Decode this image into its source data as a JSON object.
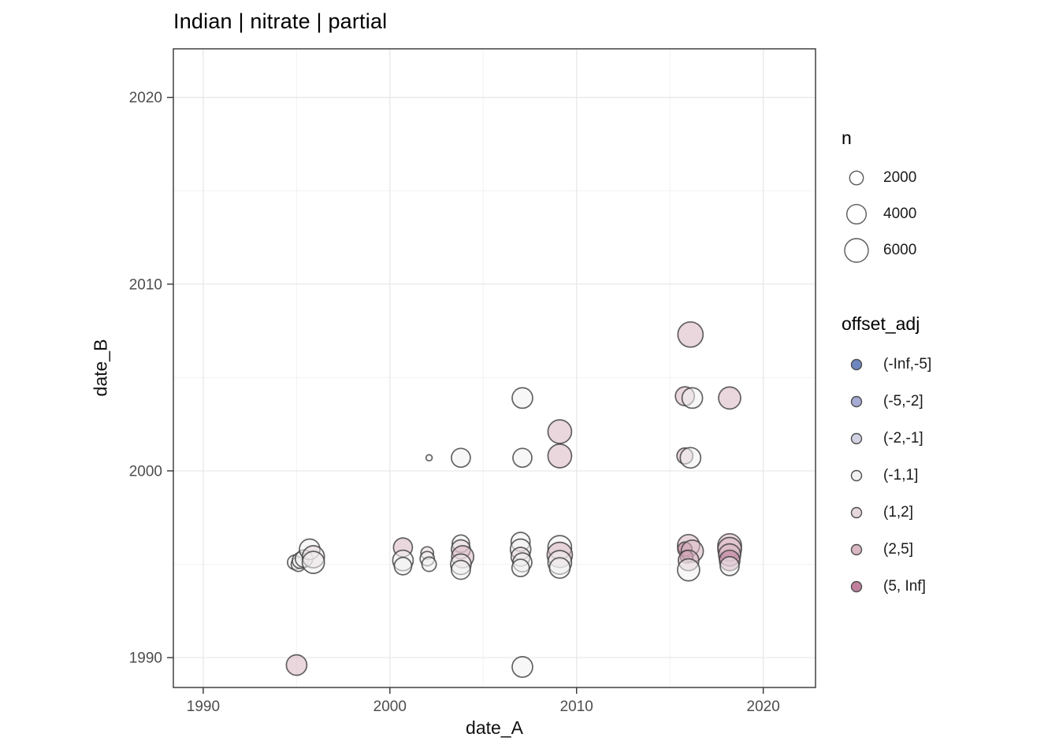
{
  "title": "Indian | nitrate | partial",
  "axes": {
    "x": {
      "label": "date_A",
      "ticks": [
        "1990",
        "2000",
        "2010",
        "2020"
      ],
      "tick_values": [
        1990,
        2000,
        2010,
        2020
      ],
      "minor_ticks": [
        1995,
        2005,
        2015
      ],
      "range": [
        1988.4,
        2022.8
      ]
    },
    "y": {
      "label": "date_B",
      "ticks": [
        "1990",
        "2000",
        "2010",
        "2020"
      ],
      "tick_values": [
        1990,
        2000,
        2010,
        2020
      ],
      "minor_ticks": [
        1995,
        2005,
        2015
      ],
      "range": [
        1988.4,
        2022.6
      ]
    }
  },
  "legends": {
    "n": {
      "title": "n",
      "entries": [
        {
          "label": "2000",
          "n": 2000
        },
        {
          "label": "4000",
          "n": 4000
        },
        {
          "label": "6000",
          "n": 6000
        }
      ]
    },
    "offset_adj": {
      "title": "offset_adj",
      "entries": [
        {
          "label": "(-Inf,-5]",
          "color": "#6E86C0"
        },
        {
          "label": "(-5,-2]",
          "color": "#A6ABD3"
        },
        {
          "label": "(-2,-1]",
          "color": "#D0D1E2"
        },
        {
          "label": "(-1,1]",
          "color": "#F1F1F1"
        },
        {
          "label": "(1,2]",
          "color": "#E5D7DB"
        },
        {
          "label": "(2,5]",
          "color": "#D9B7C3"
        },
        {
          "label": "(5, Inf]",
          "color": "#C0809D"
        }
      ]
    }
  },
  "colors": {
    "panel_border": "#333333",
    "tick_mark": "#333333",
    "tick_text": "#4d4d4d",
    "grid_major": "#e6e6e6",
    "grid_minor": "#f2f2f2",
    "point_stroke": "#3c3c3c",
    "legend_key_stroke": "#5a5a5a",
    "background": "#ffffff"
  },
  "chart_data": {
    "type": "scatter",
    "title": "Indian | nitrate | partial",
    "xlabel": "date_A",
    "ylabel": "date_B",
    "xlim": [
      1988.4,
      2022.8
    ],
    "ylim": [
      1988.4,
      2022.6
    ],
    "grid": true,
    "legend_position": "right",
    "size_legend": {
      "title": "n",
      "values": [
        2000,
        4000,
        6000
      ]
    },
    "color_legend": {
      "title": "offset_adj",
      "categories": [
        "(-Inf,-5]",
        "(-5,-2]",
        "(-2,-1]",
        "(-1,1]",
        "(1,2]",
        "(2,5]",
        "(5, Inf]"
      ]
    },
    "points": [
      {
        "x": 1994.9,
        "y": 1995.1,
        "n": 2200,
        "offset_adj": "(-1,1]"
      },
      {
        "x": 1995.1,
        "y": 1995.0,
        "n": 2200,
        "offset_adj": "(-1,1]"
      },
      {
        "x": 1995.2,
        "y": 1995.2,
        "n": 2700,
        "offset_adj": "(-1,1]"
      },
      {
        "x": 1995.4,
        "y": 1995.3,
        "n": 3200,
        "offset_adj": "(-1,1]"
      },
      {
        "x": 1995.7,
        "y": 1995.8,
        "n": 4500,
        "offset_adj": "(-1,1]"
      },
      {
        "x": 1995.9,
        "y": 1995.4,
        "n": 5200,
        "offset_adj": "(1,2]"
      },
      {
        "x": 1995.9,
        "y": 1995.1,
        "n": 5200,
        "offset_adj": "(-1,1]"
      },
      {
        "x": 1995.0,
        "y": 1989.6,
        "n": 4500,
        "offset_adj": "(2,5]"
      },
      {
        "x": 2000.7,
        "y": 1995.9,
        "n": 3800,
        "offset_adj": "(2,5]"
      },
      {
        "x": 2000.7,
        "y": 1995.2,
        "n": 4500,
        "offset_adj": "(-1,1]"
      },
      {
        "x": 2000.7,
        "y": 1994.9,
        "n": 3200,
        "offset_adj": "(-1,1]"
      },
      {
        "x": 2002.0,
        "y": 1995.6,
        "n": 1700,
        "offset_adj": "(1,2]"
      },
      {
        "x": 2002.0,
        "y": 1995.3,
        "n": 2200,
        "offset_adj": "(-1,1]"
      },
      {
        "x": 2002.1,
        "y": 1995.0,
        "n": 2200,
        "offset_adj": "(-1,1]"
      },
      {
        "x": 2002.1,
        "y": 2000.7,
        "n": 400,
        "offset_adj": "(-1,1]"
      },
      {
        "x": 2003.8,
        "y": 2000.7,
        "n": 3800,
        "offset_adj": "(-1,1]"
      },
      {
        "x": 2003.8,
        "y": 1996.1,
        "n": 3200,
        "offset_adj": "(-1,1]"
      },
      {
        "x": 2003.8,
        "y": 1995.8,
        "n": 3800,
        "offset_adj": "(1,2]"
      },
      {
        "x": 2003.9,
        "y": 1995.4,
        "n": 5200,
        "offset_adj": "(2,5]"
      },
      {
        "x": 2003.8,
        "y": 1995.0,
        "n": 4500,
        "offset_adj": "(-1,1]"
      },
      {
        "x": 2003.8,
        "y": 1994.7,
        "n": 3800,
        "offset_adj": "(-1,1]"
      },
      {
        "x": 2007.1,
        "y": 2003.9,
        "n": 4500,
        "offset_adj": "(-1,1]"
      },
      {
        "x": 2007.1,
        "y": 2000.7,
        "n": 3800,
        "offset_adj": "(-1,1]"
      },
      {
        "x": 2007.0,
        "y": 1996.2,
        "n": 3800,
        "offset_adj": "(-1,1]"
      },
      {
        "x": 2007.0,
        "y": 1995.8,
        "n": 4500,
        "offset_adj": "(-1,1]"
      },
      {
        "x": 2007.0,
        "y": 1995.4,
        "n": 3800,
        "offset_adj": "(1,2]"
      },
      {
        "x": 2007.1,
        "y": 1995.1,
        "n": 3800,
        "offset_adj": "(-1,1]"
      },
      {
        "x": 2007.0,
        "y": 1994.8,
        "n": 3200,
        "offset_adj": "(-1,1]"
      },
      {
        "x": 2007.1,
        "y": 1989.5,
        "n": 4500,
        "offset_adj": "(-1,1]"
      },
      {
        "x": 2009.1,
        "y": 2002.1,
        "n": 6000,
        "offset_adj": "(2,5]"
      },
      {
        "x": 2009.1,
        "y": 2000.8,
        "n": 6000,
        "offset_adj": "(2,5]"
      },
      {
        "x": 2009.1,
        "y": 1995.9,
        "n": 6000,
        "offset_adj": "(-1,1]"
      },
      {
        "x": 2009.1,
        "y": 1995.5,
        "n": 6800,
        "offset_adj": "(2,5]"
      },
      {
        "x": 2009.1,
        "y": 1995.1,
        "n": 6000,
        "offset_adj": "(-1,1]"
      },
      {
        "x": 2009.1,
        "y": 1994.8,
        "n": 4500,
        "offset_adj": "(-1,1]"
      },
      {
        "x": 2016.1,
        "y": 2007.3,
        "n": 6800,
        "offset_adj": "(2,5]"
      },
      {
        "x": 2015.8,
        "y": 2004.0,
        "n": 3800,
        "offset_adj": "(2,5]"
      },
      {
        "x": 2016.2,
        "y": 2003.9,
        "n": 4500,
        "offset_adj": "(-1,1]"
      },
      {
        "x": 2018.2,
        "y": 2003.9,
        "n": 5200,
        "offset_adj": "(2,5]"
      },
      {
        "x": 2015.8,
        "y": 2000.8,
        "n": 2700,
        "offset_adj": "(2,5]"
      },
      {
        "x": 2016.1,
        "y": 2000.7,
        "n": 4500,
        "offset_adj": "(-1,1]"
      },
      {
        "x": 2016.0,
        "y": 1996.0,
        "n": 5200,
        "offset_adj": "(2,5]"
      },
      {
        "x": 2015.8,
        "y": 1995.8,
        "n": 2200,
        "offset_adj": "(5, Inf]"
      },
      {
        "x": 2016.2,
        "y": 1995.7,
        "n": 5200,
        "offset_adj": "(2,5]"
      },
      {
        "x": 2015.9,
        "y": 1995.4,
        "n": 1700,
        "offset_adj": "(5, Inf]"
      },
      {
        "x": 2016.0,
        "y": 1995.2,
        "n": 4500,
        "offset_adj": "(2,5]"
      },
      {
        "x": 2016.0,
        "y": 1994.7,
        "n": 5200,
        "offset_adj": "(-1,1]"
      },
      {
        "x": 2018.2,
        "y": 1996.0,
        "n": 6000,
        "offset_adj": "(2,5]"
      },
      {
        "x": 2018.2,
        "y": 1995.8,
        "n": 6000,
        "offset_adj": "(2,5]"
      },
      {
        "x": 2018.2,
        "y": 1995.5,
        "n": 5200,
        "offset_adj": "(2,5]"
      },
      {
        "x": 2018.2,
        "y": 1995.2,
        "n": 4500,
        "offset_adj": "(5, Inf]"
      },
      {
        "x": 2018.2,
        "y": 1994.9,
        "n": 3800,
        "offset_adj": "(-1,1]"
      }
    ]
  }
}
